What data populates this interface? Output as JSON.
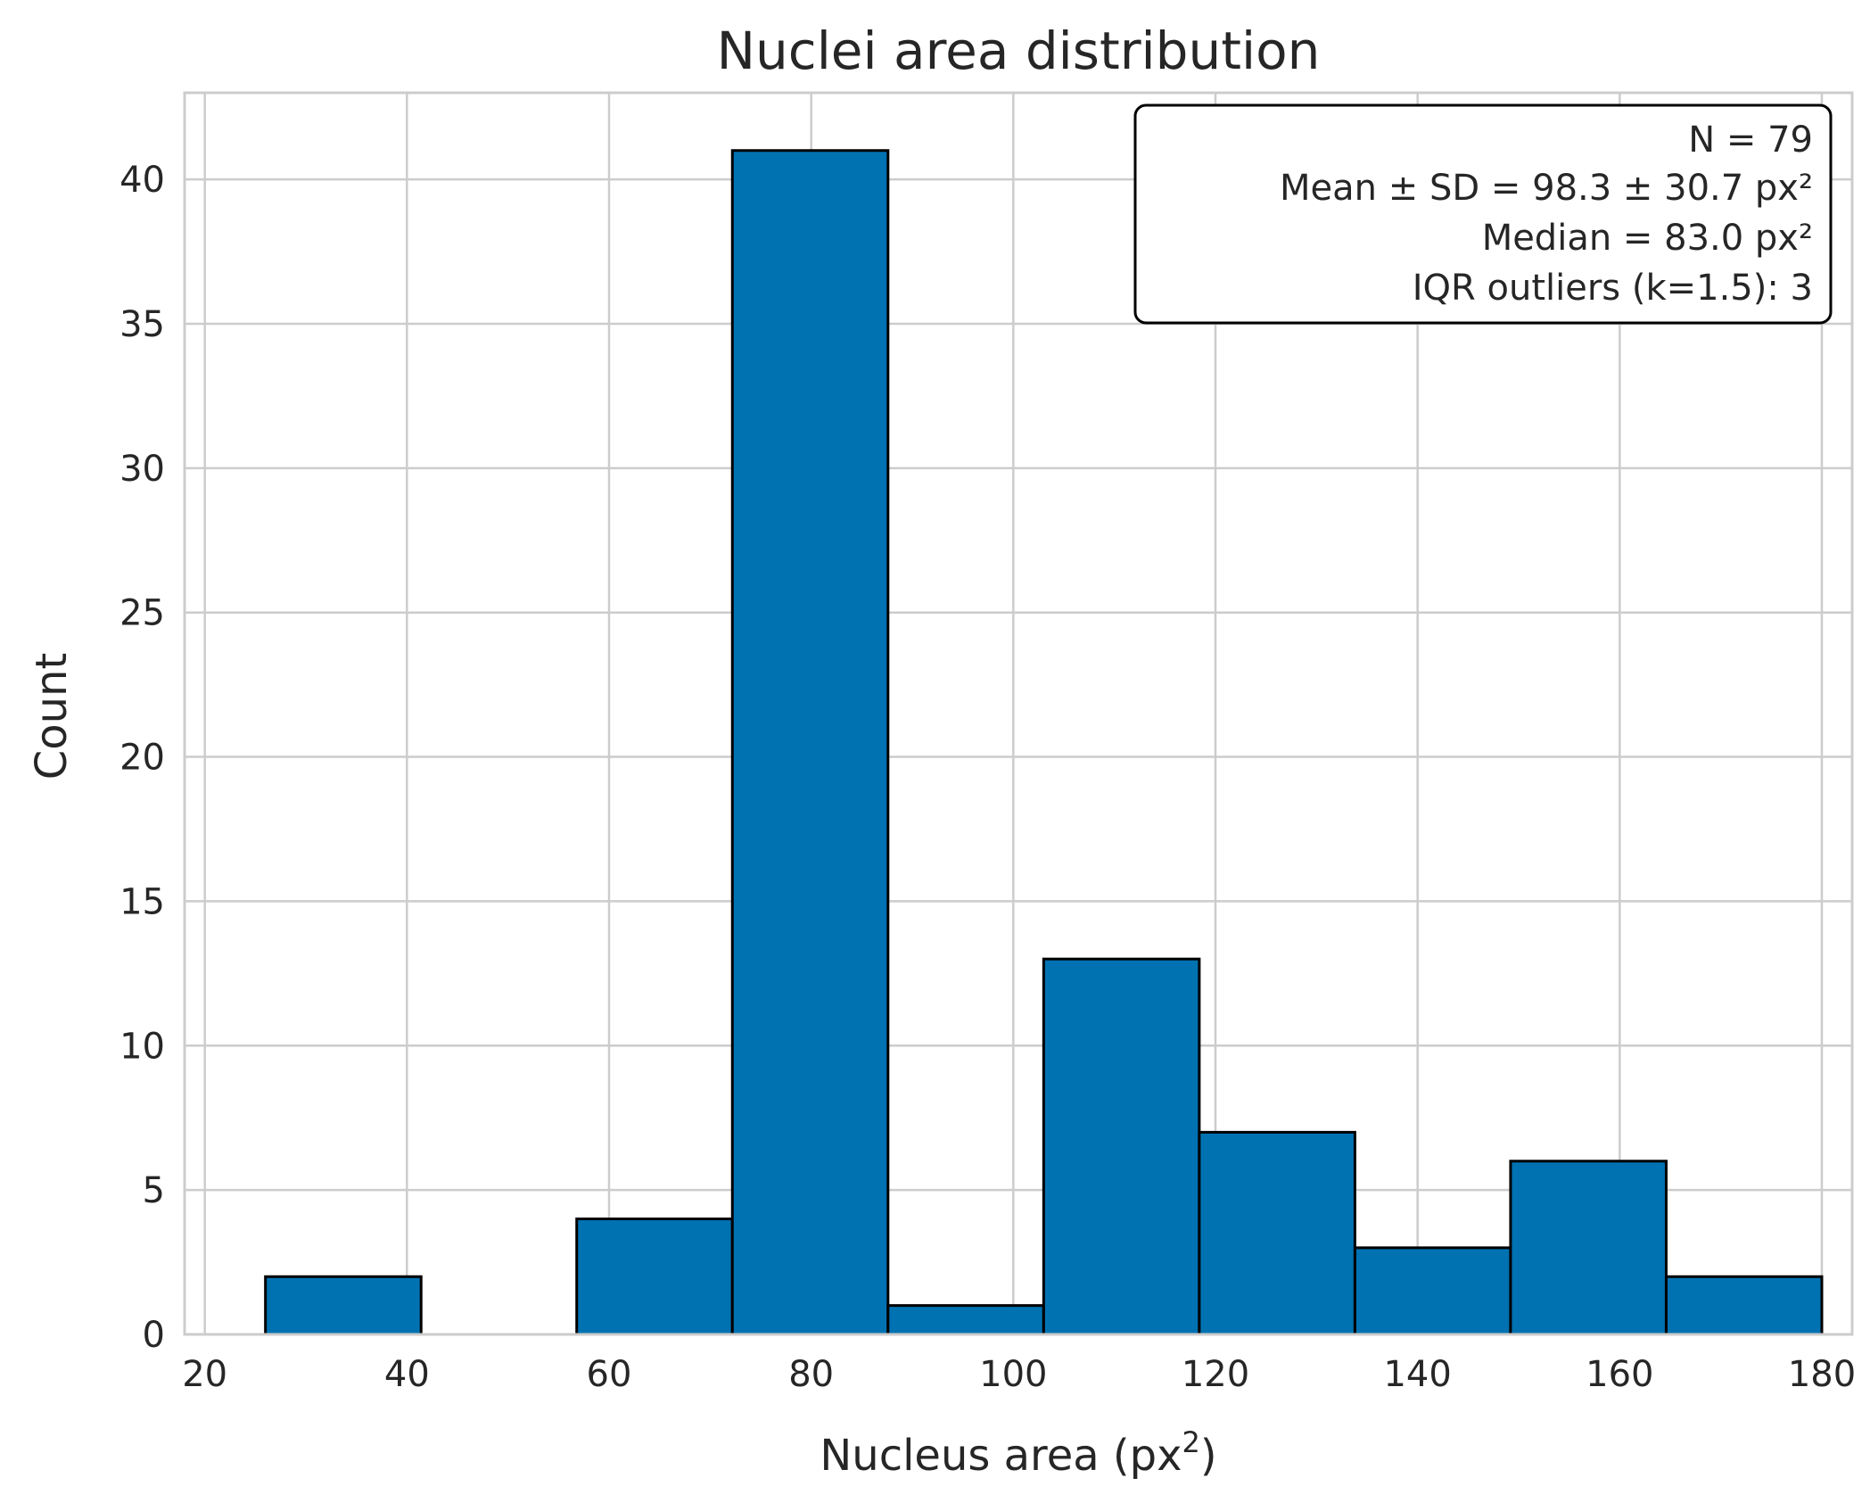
{
  "chart_data": {
    "type": "bar",
    "title": "Nuclei area distribution",
    "xlabel": "Nucleus area (px",
    "xlabel_superscript": "2",
    "xlabel_close": ")",
    "ylabel": "Count",
    "xlim": [
      18,
      183
    ],
    "ylim": [
      0,
      43
    ],
    "x_ticks": [
      20,
      40,
      60,
      80,
      100,
      120,
      140,
      160,
      180
    ],
    "y_ticks": [
      0,
      5,
      10,
      15,
      20,
      25,
      30,
      35,
      40
    ],
    "bins": [
      {
        "x0": 26,
        "x1": 41.4,
        "count": 2
      },
      {
        "x0": 41.4,
        "x1": 56.8,
        "count": 0
      },
      {
        "x0": 56.8,
        "x1": 72.2,
        "count": 4
      },
      {
        "x0": 72.2,
        "x1": 87.6,
        "count": 41
      },
      {
        "x0": 87.6,
        "x1": 103.0,
        "count": 1
      },
      {
        "x0": 103.0,
        "x1": 118.4,
        "count": 13
      },
      {
        "x0": 118.4,
        "x1": 133.8,
        "count": 7
      },
      {
        "x0": 133.8,
        "x1": 149.2,
        "count": 3
      },
      {
        "x0": 149.2,
        "x1": 164.6,
        "count": 6
      },
      {
        "x0": 164.6,
        "x1": 180.0,
        "count": 2
      }
    ],
    "grid": true,
    "bar_color": "#0072b2",
    "edge_color": "#000000",
    "grid_color": "#cccccc",
    "stats_box": {
      "placement": "top-right",
      "lines": [
        "N = 79",
        "Mean ± SD = 98.3 ± 30.7 px²",
        "Median = 83.0 px²",
        "IQR outliers (k=1.5): 3"
      ]
    }
  }
}
